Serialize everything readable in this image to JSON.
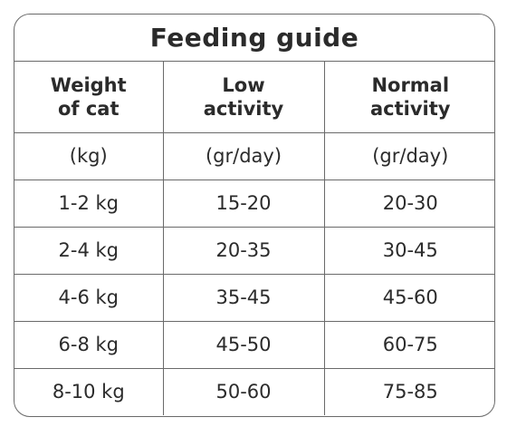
{
  "title": "Feeding guide",
  "headers": [
    {
      "line1": "Weight",
      "line2": "of cat"
    },
    {
      "line1": "Low",
      "line2": "activity"
    },
    {
      "line1": "Normal",
      "line2": "activity"
    }
  ],
  "units": [
    "(kg)",
    "(gr/day)",
    "(gr/day)"
  ],
  "rows": [
    [
      "1-2 kg",
      "15-20",
      "20-30"
    ],
    [
      "2-4 kg",
      "20-35",
      "30-45"
    ],
    [
      "4-6 kg",
      "35-45",
      "45-60"
    ],
    [
      "6-8 kg",
      "45-50",
      "60-75"
    ],
    [
      "8-10 kg",
      "50-60",
      "75-85"
    ]
  ]
}
